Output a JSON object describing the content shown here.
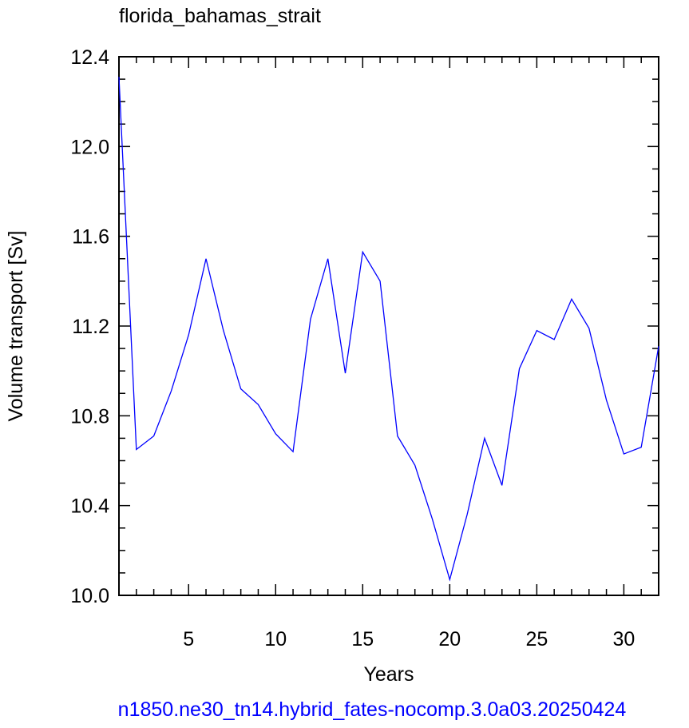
{
  "chart_data": {
    "type": "line",
    "title": "florida_bahamas_strait",
    "xlabel": "Years",
    "ylabel": "Volume transport [Sv]",
    "footer": "n1850.ne30_tn14.hybrid_fates-nocomp.3.0a03.20250424",
    "x": [
      1,
      2,
      3,
      4,
      5,
      6,
      7,
      8,
      9,
      10,
      11,
      12,
      13,
      14,
      15,
      16,
      17,
      18,
      19,
      20,
      21,
      22,
      23,
      24,
      25,
      26,
      27,
      28,
      29,
      30,
      31,
      32
    ],
    "series": [
      {
        "name": "florida_bahamas_strait",
        "color": "#0000ff",
        "values": [
          12.31,
          10.65,
          10.71,
          10.91,
          11.16,
          11.5,
          11.18,
          10.92,
          10.85,
          10.72,
          10.64,
          11.23,
          11.5,
          10.99,
          11.53,
          11.4,
          10.71,
          10.58,
          10.34,
          10.07,
          10.36,
          10.7,
          10.49,
          11.01,
          11.18,
          11.14,
          11.32,
          11.19,
          10.87,
          10.63,
          10.66,
          11.11
        ]
      }
    ],
    "xlim": [
      1,
      32
    ],
    "ylim": [
      10.0,
      12.4
    ],
    "xticks": [
      5,
      10,
      15,
      20,
      25,
      30
    ],
    "yticks": [
      {
        "value": 10.0,
        "label": "10.0"
      },
      {
        "value": 10.4,
        "label": "10.4"
      },
      {
        "value": 10.8,
        "label": "10.8"
      },
      {
        "value": 11.2,
        "label": "11.2"
      },
      {
        "value": 11.6,
        "label": "11.6"
      },
      {
        "value": 12.0,
        "label": "12.0"
      },
      {
        "value": 12.4,
        "label": "12.4"
      }
    ],
    "xminorticks": [
      1,
      2,
      3,
      4,
      6,
      7,
      8,
      9,
      11,
      12,
      13,
      14,
      16,
      17,
      18,
      19,
      21,
      22,
      23,
      24,
      26,
      27,
      28,
      29,
      31,
      32
    ],
    "yminorticks": [
      10.1,
      10.2,
      10.3,
      10.5,
      10.6,
      10.7,
      10.9,
      11.0,
      11.1,
      11.3,
      11.4,
      11.5,
      11.7,
      11.8,
      11.9,
      12.1,
      12.2,
      12.3
    ]
  }
}
